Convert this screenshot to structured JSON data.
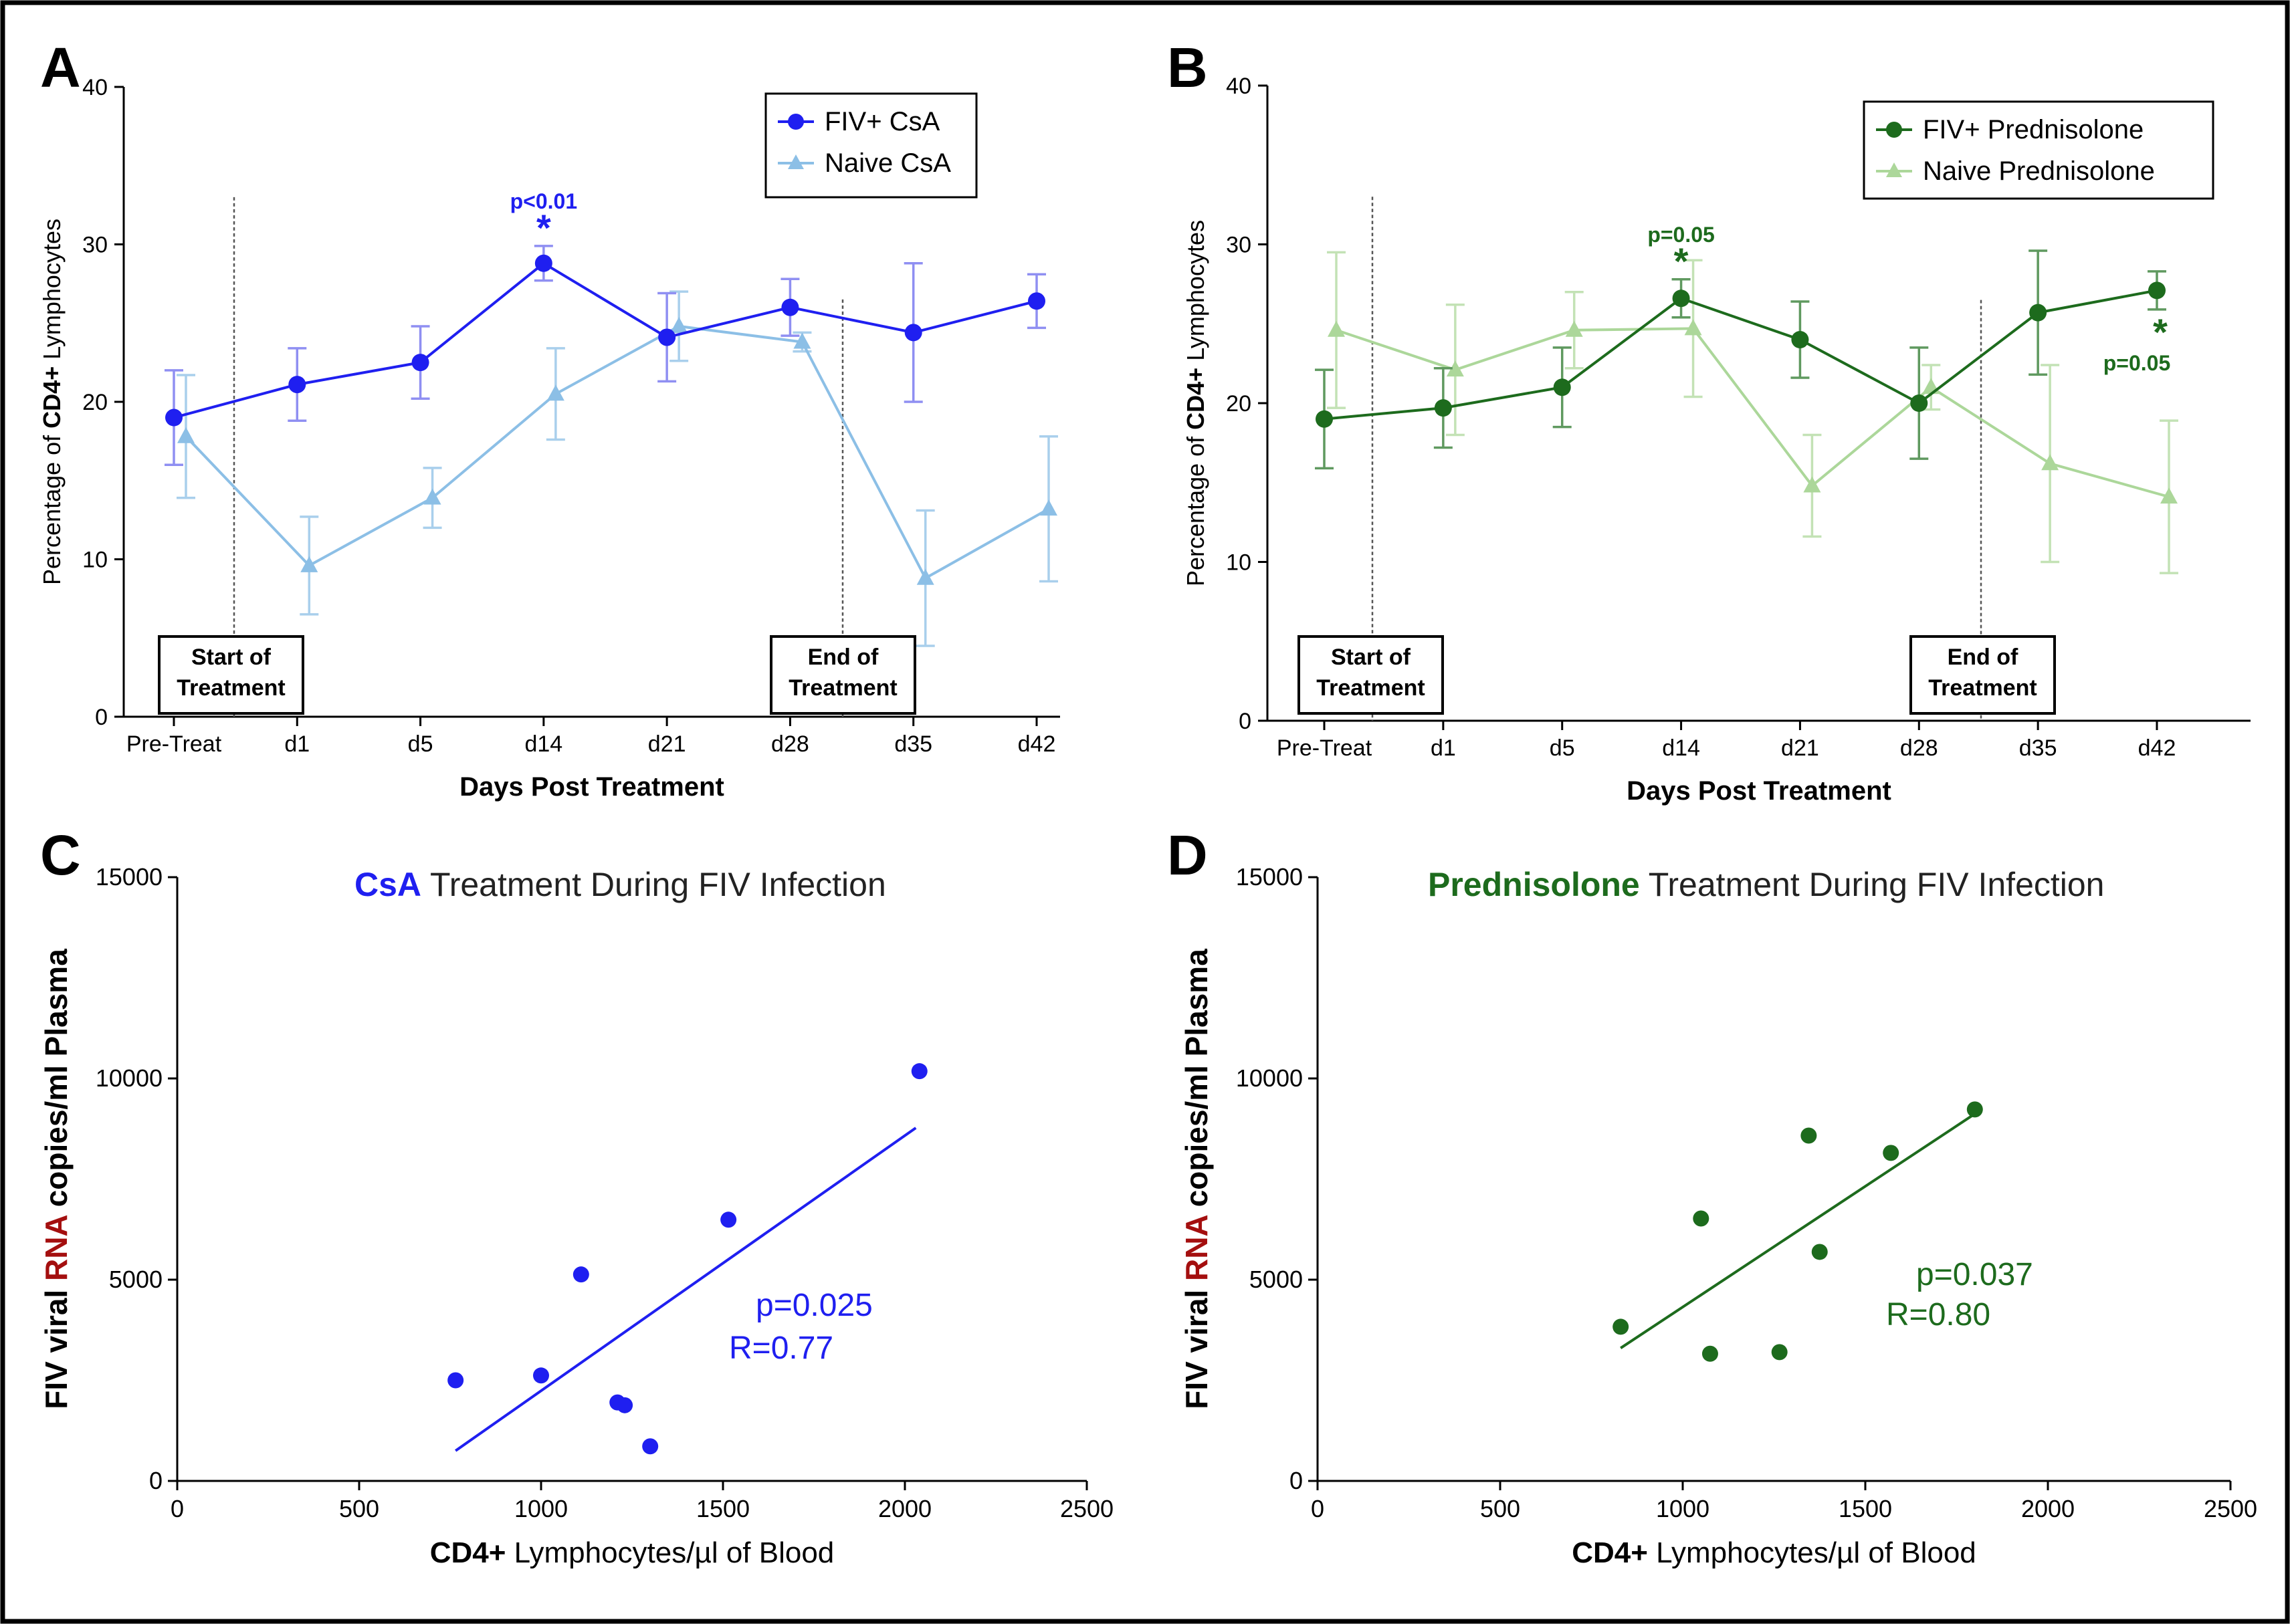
{
  "chart_data": [
    {
      "panel": "A",
      "type": "line",
      "title": "",
      "ylabel_pre": "Percentage of ",
      "ylabel_bold": "CD4+",
      "ylabel_post": " Lymphocytes",
      "xlabel": "Days Post Treatment",
      "categories": [
        "Pre-Treat",
        "d1",
        "d5",
        "d14",
        "d21",
        "d28",
        "d35",
        "d42"
      ],
      "ylim": [
        0,
        40
      ],
      "yticks": [
        0,
        10,
        20,
        30,
        40
      ],
      "series": [
        {
          "name": "FIV+ CsA",
          "marker": "circle",
          "color": "#1f1ff0",
          "errcolor": "#8f8ff2",
          "values": [
            19,
            21.1,
            22.5,
            28.8,
            24.1,
            26,
            24.4,
            26.4
          ],
          "errors": [
            3,
            2.3,
            2.3,
            1.1,
            2.8,
            1.8,
            4.4,
            1.7
          ]
        },
        {
          "name": "Naive CsA",
          "marker": "triangle",
          "color": "#8cbfe6",
          "errcolor": "#a9cfec",
          "values": [
            17.8,
            9.6,
            13.9,
            20.5,
            24.8,
            23.8,
            8.8,
            13.2
          ],
          "errors": [
            3.9,
            3.1,
            1.9,
            2.9,
            2.2,
            0.6,
            4.3,
            4.6
          ]
        }
      ],
      "annotations": [
        {
          "text": "p<0.01",
          "category": "d14",
          "series": 0
        }
      ],
      "treatment_markers": {
        "start": "Start of\nTreatment",
        "end": "End of\nTreatment"
      },
      "legend_position": "top-right"
    },
    {
      "panel": "B",
      "type": "line",
      "title": "",
      "ylabel_pre": "Percentage of ",
      "ylabel_bold": "CD4+",
      "ylabel_post": " Lymphocytes",
      "xlabel": "Days Post Treatment",
      "categories": [
        "Pre-Treat",
        "d1",
        "d5",
        "d14",
        "d21",
        "d28",
        "d35",
        "d42"
      ],
      "ylim": [
        0,
        40
      ],
      "yticks": [
        0,
        10,
        20,
        30,
        40
      ],
      "series": [
        {
          "name": "FIV+ Prednisolone",
          "marker": "circle",
          "color": "#1d6b1d",
          "errcolor": "#5f995f",
          "values": [
            19,
            19.7,
            21,
            26.6,
            24,
            20,
            25.7,
            27.1
          ],
          "errors": [
            3.1,
            2.5,
            2.5,
            1.2,
            2.4,
            3.5,
            3.9,
            1.2
          ]
        },
        {
          "name": "Naive Prednisolone",
          "marker": "triangle",
          "color": "#acd79a",
          "errcolor": "#c3e2b5",
          "values": [
            24.6,
            22.1,
            24.6,
            24.7,
            14.8,
            21,
            16.2,
            14.1
          ],
          "errors": [
            4.9,
            4.1,
            2.4,
            4.3,
            3.2,
            1.4,
            6.2,
            4.8
          ]
        }
      ],
      "annotations": [
        {
          "text": "p=0.05",
          "category": "d14",
          "series": 0
        },
        {
          "text": "p=0.05",
          "category": "d42",
          "series": 0
        }
      ],
      "treatment_markers": {
        "start": "Start of\nTreatment",
        "end": "End of\nTreatment"
      },
      "legend_position": "top-right"
    },
    {
      "panel": "C",
      "type": "scatter",
      "title_highlight": "CsA",
      "title_rest": " Treatment During FIV Infection",
      "ylabel_a": "FIV viral ",
      "ylabel_b": "RNA",
      "ylabel_c": " copies/ml Plasma",
      "xlabel_bold": "CD4+",
      "xlabel_rest": " Lymphocytes/µl of Blood",
      "xlim": [
        0,
        2500
      ],
      "ylim": [
        0,
        15000
      ],
      "xticks": [
        0,
        500,
        1000,
        1500,
        2000,
        2500
      ],
      "yticks": [
        0,
        5000,
        10000,
        15000
      ],
      "color": "#1f1ff0",
      "points": [
        [
          765,
          2500
        ],
        [
          1000,
          2620
        ],
        [
          1110,
          5130
        ],
        [
          1210,
          1950
        ],
        [
          1230,
          1880
        ],
        [
          1300,
          860
        ],
        [
          1515,
          6490
        ],
        [
          2040,
          10180
        ]
      ],
      "fit": {
        "x": [
          765,
          2030
        ],
        "y": [
          750,
          8770
        ]
      },
      "stats": {
        "p": "p=0.025",
        "r": "R=0.77"
      }
    },
    {
      "panel": "D",
      "type": "scatter",
      "title_highlight": "Prednisolone",
      "title_rest": " Treatment During FIV Infection",
      "ylabel_a": "FIV viral ",
      "ylabel_b": "RNA",
      "ylabel_c": " copies/ml Plasma",
      "xlabel_bold": "CD4+",
      "xlabel_rest": " Lymphocytes/µl of Blood",
      "xlim": [
        0,
        2500
      ],
      "ylim": [
        0,
        15000
      ],
      "xticks": [
        0,
        500,
        1000,
        1500,
        2000,
        2500
      ],
      "yticks": [
        0,
        5000,
        10000,
        15000
      ],
      "color": "#1d6b1d",
      "points": [
        [
          830,
          3830
        ],
        [
          1050,
          6520
        ],
        [
          1075,
          3160
        ],
        [
          1265,
          3200
        ],
        [
          1345,
          8580
        ],
        [
          1375,
          5690
        ],
        [
          1570,
          8150
        ],
        [
          1800,
          9230
        ]
      ],
      "fit": {
        "x": [
          830,
          1800
        ],
        "y": [
          3300,
          9120
        ]
      },
      "stats": {
        "p": "p=0.037",
        "r": "R=0.80"
      }
    }
  ],
  "panel_letters": [
    "A",
    "B",
    "C",
    "D"
  ],
  "colors": {
    "rna_red": "#a40f0f",
    "black": "#000000"
  }
}
